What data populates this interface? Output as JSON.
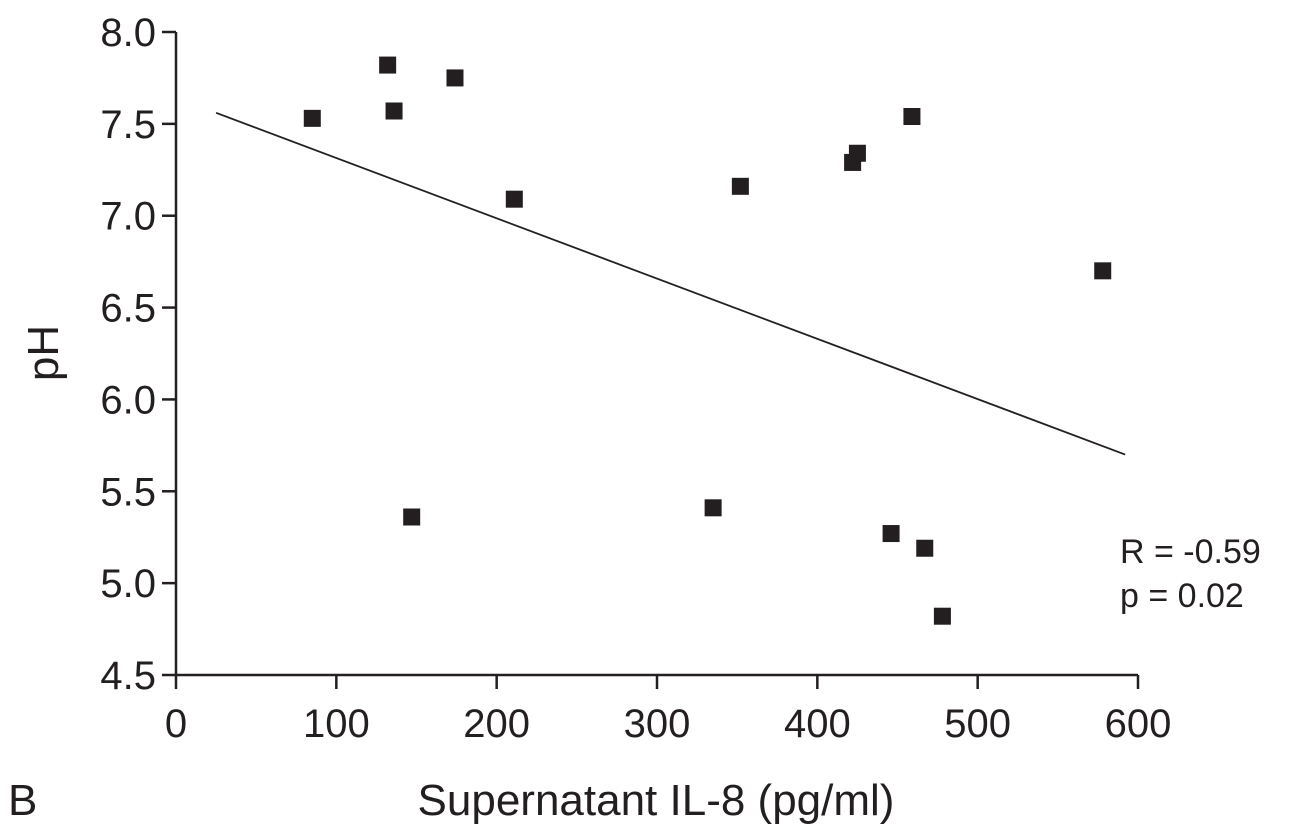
{
  "chart_data": {
    "type": "scatter",
    "xlabel": "Supernatant IL-8 (pg/ml)",
    "ylabel": "pH",
    "xlim": [
      0,
      600
    ],
    "ylim": [
      4.5,
      8.0
    ],
    "x_ticks": [
      0,
      100,
      200,
      300,
      400,
      500,
      600
    ],
    "y_ticks": [
      4.5,
      5.0,
      5.5,
      6.0,
      6.5,
      7.0,
      7.5,
      8.0
    ],
    "x_tick_labels": [
      "0",
      "100",
      "200",
      "300",
      "400",
      "500",
      "600"
    ],
    "y_tick_labels": [
      "4.5",
      "5.0",
      "5.5",
      "6.0",
      "6.5",
      "7.0",
      "7.5",
      "8.0"
    ],
    "points": [
      {
        "x": 85,
        "y": 7.53
      },
      {
        "x": 132,
        "y": 7.82
      },
      {
        "x": 136,
        "y": 7.57
      },
      {
        "x": 147,
        "y": 5.36
      },
      {
        "x": 174,
        "y": 7.75
      },
      {
        "x": 211,
        "y": 7.09
      },
      {
        "x": 335,
        "y": 5.41
      },
      {
        "x": 352,
        "y": 7.16
      },
      {
        "x": 422,
        "y": 7.29
      },
      {
        "x": 425,
        "y": 7.34
      },
      {
        "x": 446,
        "y": 5.27
      },
      {
        "x": 459,
        "y": 7.54
      },
      {
        "x": 467,
        "y": 5.19
      },
      {
        "x": 478,
        "y": 4.82
      },
      {
        "x": 578,
        "y": 6.7
      }
    ],
    "trendline": {
      "x": [
        25,
        592
      ],
      "y": [
        7.56,
        5.7
      ]
    },
    "grid": false,
    "legend": "none",
    "marker": "square",
    "color": "#231f20",
    "annotations": [
      "R = -0.59",
      "p = 0.02"
    ],
    "panel_label": "B"
  }
}
